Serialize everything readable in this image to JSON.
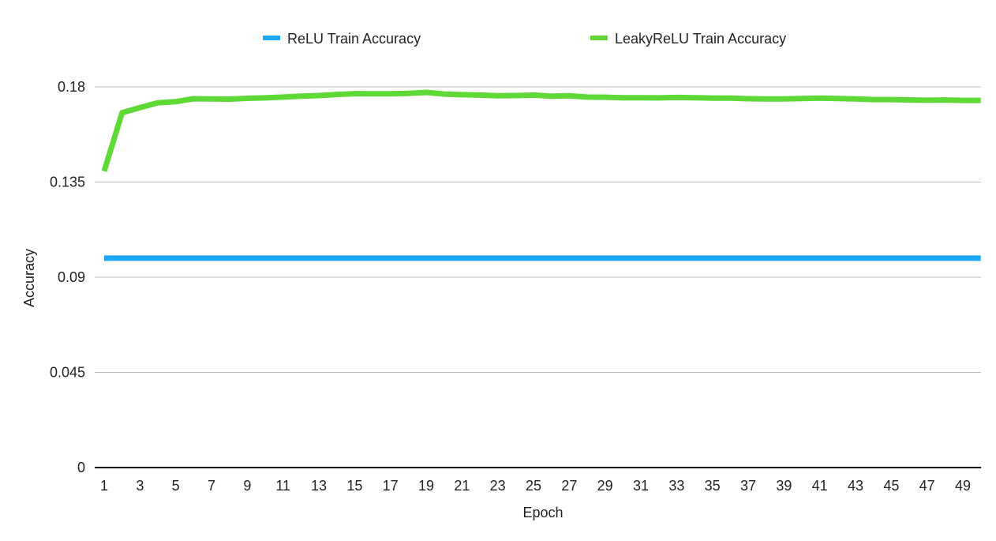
{
  "chart_data": {
    "type": "line",
    "title": "",
    "xlabel": "Epoch",
    "ylabel": "Accuracy",
    "ylim": [
      0,
      0.18
    ],
    "yticks": [
      "0",
      "0.045",
      "0.09",
      "0.135",
      "0.18"
    ],
    "ytick_values": [
      0,
      0.045,
      0.09,
      0.135,
      0.18
    ],
    "grid": true,
    "legend_position": "top",
    "x": [
      1,
      2,
      3,
      4,
      5,
      6,
      7,
      8,
      9,
      10,
      11,
      12,
      13,
      14,
      15,
      16,
      17,
      18,
      19,
      20,
      21,
      22,
      23,
      24,
      25,
      26,
      27,
      28,
      29,
      30,
      31,
      32,
      33,
      34,
      35,
      36,
      37,
      38,
      39,
      40,
      41,
      42,
      43,
      44,
      45,
      46,
      47,
      48,
      49,
      50
    ],
    "xticks": [
      1,
      3,
      5,
      7,
      9,
      11,
      13,
      15,
      17,
      19,
      21,
      23,
      25,
      27,
      29,
      31,
      33,
      35,
      37,
      39,
      41,
      43,
      45,
      47,
      49
    ],
    "series": [
      {
        "name": "ReLU Train Accuracy",
        "color": "#1ea7f7",
        "values": [
          0.099,
          0.099,
          0.099,
          0.099,
          0.099,
          0.099,
          0.099,
          0.099,
          0.099,
          0.099,
          0.099,
          0.099,
          0.099,
          0.099,
          0.099,
          0.099,
          0.099,
          0.099,
          0.099,
          0.099,
          0.099,
          0.099,
          0.099,
          0.099,
          0.099,
          0.099,
          0.099,
          0.099,
          0.099,
          0.099,
          0.099,
          0.099,
          0.099,
          0.099,
          0.099,
          0.099,
          0.099,
          0.099,
          0.099,
          0.099,
          0.099,
          0.099,
          0.099,
          0.099,
          0.099,
          0.099,
          0.099,
          0.099,
          0.099,
          0.099
        ]
      },
      {
        "name": "LeakyReLU Train Accuracy",
        "color": "#5fd935",
        "values": [
          0.1401,
          0.1678,
          0.1702,
          0.1725,
          0.173,
          0.1744,
          0.1743,
          0.1742,
          0.1746,
          0.1748,
          0.1752,
          0.1756,
          0.1759,
          0.1764,
          0.1768,
          0.1767,
          0.1767,
          0.1769,
          0.1774,
          0.1766,
          0.1763,
          0.1761,
          0.1758,
          0.1759,
          0.1761,
          0.1756,
          0.1758,
          0.1752,
          0.1751,
          0.1749,
          0.1749,
          0.1748,
          0.175,
          0.1749,
          0.1747,
          0.1747,
          0.1744,
          0.1743,
          0.1743,
          0.1745,
          0.1747,
          0.1745,
          0.1743,
          0.174,
          0.174,
          0.1738,
          0.1737,
          0.1738,
          0.1736,
          0.1736
        ]
      }
    ]
  }
}
